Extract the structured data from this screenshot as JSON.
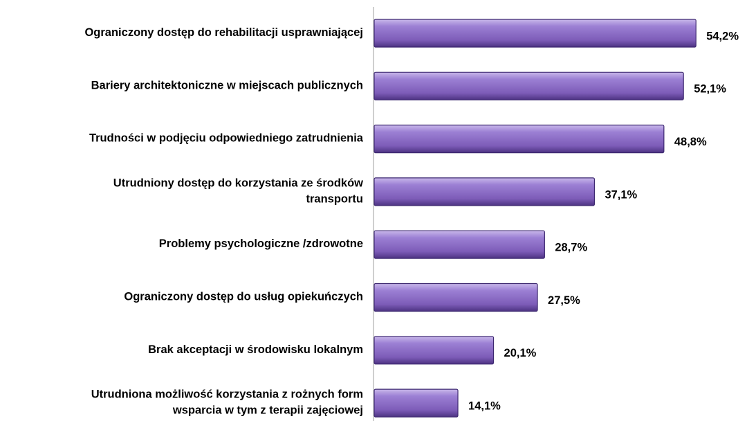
{
  "chart_data": {
    "type": "barh",
    "categories": [
      "Ograniczony dostęp do rehabilitacji usprawniającej",
      "Bariery architektoniczne w miejscach publicznych",
      "Trudności w podjęciu odpowiedniego zatrudnienia",
      "Utrudniony dostęp do korzystania ze środków\ntransportu",
      "Problemy psychologiczne /zdrowotne",
      "Ograniczony dostęp do usług opiekuńczych",
      "Brak akceptacji w środowisku lokalnym",
      "Utrudniona możliwość korzystania z rożnych form\nwsparcia w tym z terapii zajęciowej"
    ],
    "values": [
      54.2,
      52.1,
      48.8,
      37.1,
      28.7,
      27.5,
      20.1,
      14.1
    ],
    "value_labels": [
      "54,2%",
      "52,1%",
      "48,8%",
      "37,1%",
      "28,7%",
      "27,5%",
      "20,1%",
      "14,1%"
    ],
    "color": "#8e6fc6",
    "xlim": [
      0,
      60
    ]
  }
}
